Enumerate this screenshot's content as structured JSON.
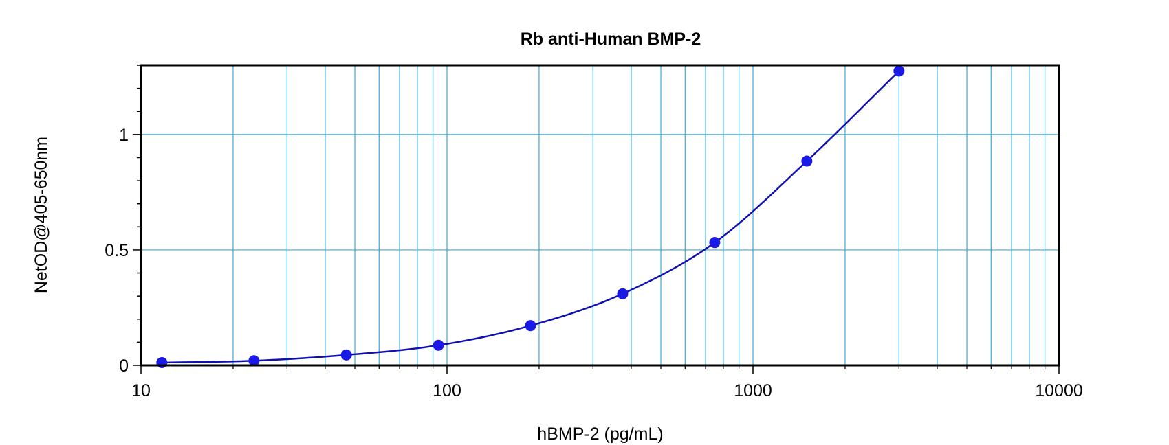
{
  "chart_data": {
    "type": "scatter",
    "title": "Rb anti-Human BMP-2",
    "xlabel": "hBMP-2 (pg/mL)",
    "ylabel": "NetOD@405-650nm",
    "xscale": "log",
    "xlim": [
      10,
      10000
    ],
    "ylim": [
      0,
      1.3
    ],
    "x_ticks": [
      "10",
      "100",
      "1000",
      "10000"
    ],
    "y_ticks": [
      "0",
      "0.5",
      "1"
    ],
    "grid": true,
    "legend": "none",
    "series": [
      {
        "x": [
          11.7,
          23.4,
          46.9,
          93.8,
          187.5,
          375,
          750,
          1500,
          3000
        ],
        "y": [
          0.012,
          0.02,
          0.045,
          0.087,
          0.172,
          0.31,
          0.532,
          0.885,
          1.275
        ]
      }
    ],
    "fit_curve": true,
    "colors": {
      "points": "#1a1ae6",
      "curve": "#1010b0",
      "grid": "#3aa9d8",
      "frame": "#000000"
    }
  }
}
